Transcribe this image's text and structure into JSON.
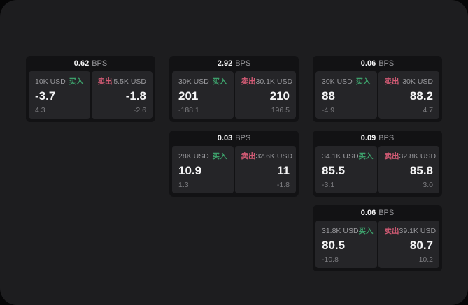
{
  "labels": {
    "buy": "买入",
    "sell": "卖出",
    "bps_unit": "BPS"
  },
  "colors": {
    "buy": "#3da06b",
    "sell": "#d45b75",
    "page_bg": "#1d1d1f",
    "card_bg": "#121214",
    "panel_bg": "#252528",
    "text_primary": "#f5f5f6",
    "text_muted": "#98989c",
    "text_faint": "#7d7d81"
  },
  "cards": [
    {
      "bps": "0.62",
      "buy": {
        "amount": "10K USD",
        "main": "-3.7",
        "sub": "4.3"
      },
      "sell": {
        "amount": "5.5K USD",
        "main": "-1.8",
        "sub": "-2.6"
      }
    },
    {
      "bps": "2.92",
      "buy": {
        "amount": "30K USD",
        "main": "201",
        "sub": "-188.1"
      },
      "sell": {
        "amount": "30.1K USD",
        "main": "210",
        "sub": "196.5"
      }
    },
    {
      "bps": "0.06",
      "buy": {
        "amount": "30K USD",
        "main": "88",
        "sub": "-4.9"
      },
      "sell": {
        "amount": "30K USD",
        "main": "88.2",
        "sub": "4.7"
      }
    },
    {
      "bps": "0.03",
      "buy": {
        "amount": "28K USD",
        "main": "10.9",
        "sub": "1.3"
      },
      "sell": {
        "amount": "32.6K USD",
        "main": "11",
        "sub": "-1.8"
      }
    },
    {
      "bps": "0.09",
      "buy": {
        "amount": "34.1K USD",
        "main": "85.5",
        "sub": "-3.1"
      },
      "sell": {
        "amount": "32.8K USD",
        "main": "85.8",
        "sub": "3.0"
      }
    },
    {
      "bps": "0.06",
      "buy": {
        "amount": "31.8K USD",
        "main": "80.5",
        "sub": "-10.8"
      },
      "sell": {
        "amount": "39.1K USD",
        "main": "80.7",
        "sub": "10.2"
      }
    }
  ]
}
